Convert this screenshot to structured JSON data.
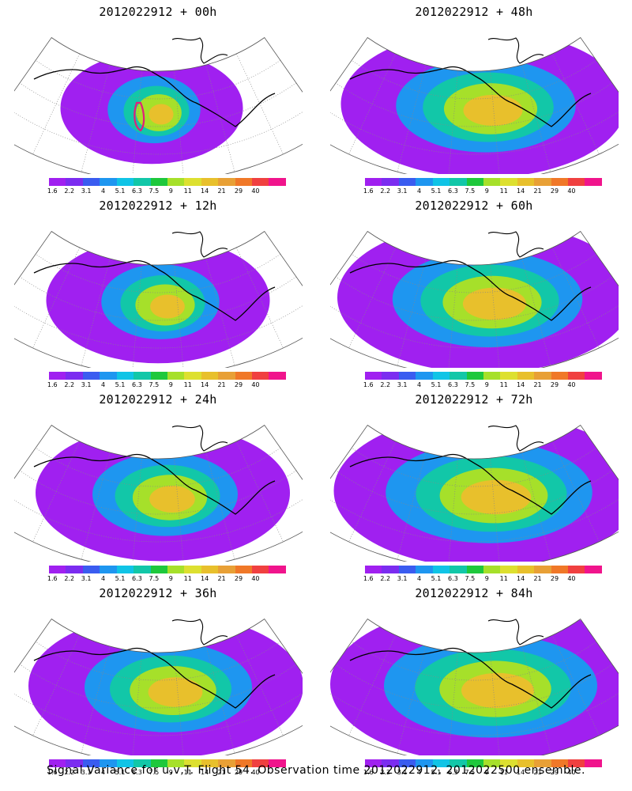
{
  "colorscale": {
    "colors": [
      "#a020f0",
      "#7b2cf0",
      "#3a5cf0",
      "#1e96f0",
      "#10c4e6",
      "#12c7a8",
      "#1ec83c",
      "#a6e02a",
      "#dde030",
      "#e8c02c",
      "#e8a036",
      "#f07828",
      "#f04040",
      "#f0148c"
    ],
    "labels": [
      "1.6",
      "2.2",
      "3.1",
      "4",
      "5.1",
      "6.3",
      "7.5",
      "9",
      "11",
      "14",
      "21",
      "29",
      "40"
    ]
  },
  "panels": [
    {
      "title": "2012022912 + 00h",
      "intensity": 0.25,
      "spread": 0.35,
      "marker": true
    },
    {
      "title": "2012022912 + 48h",
      "intensity": 0.75,
      "spread": 0.85,
      "marker": false
    },
    {
      "title": "2012022912 + 12h",
      "intensity": 0.45,
      "spread": 0.55,
      "marker": false
    },
    {
      "title": "2012022912 + 60h",
      "intensity": 0.78,
      "spread": 0.9,
      "marker": false
    },
    {
      "title": "2012022912 + 24h",
      "intensity": 0.6,
      "spread": 0.7,
      "marker": false
    },
    {
      "title": "2012022912 + 72h",
      "intensity": 0.85,
      "spread": 0.95,
      "marker": false
    },
    {
      "title": "2012022912 + 36h",
      "intensity": 0.7,
      "spread": 0.8,
      "marker": false
    },
    {
      "title": "2012022912 + 84h",
      "intensity": 0.85,
      "spread": 1.0,
      "marker": false
    }
  ],
  "caption": "Signal Variance for u,v,T. Flight 54. Observation time 2012022912. 2012022500 ensemble."
}
